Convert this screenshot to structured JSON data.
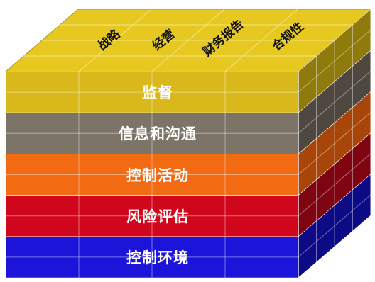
{
  "top_labels": [
    "战略",
    "经营",
    "财务报告",
    "合规性"
  ],
  "layers": [
    {
      "label": "监督",
      "front": "#d9b81c",
      "side": "#8f7a0c"
    },
    {
      "label": "信息和沟通",
      "front": "#7d7468",
      "side": "#4e4840"
    },
    {
      "label": "控制活动",
      "front": "#f26a12",
      "side": "#a8460a"
    },
    {
      "label": "风险评估",
      "front": "#d0071c",
      "side": "#7e0412"
    },
    {
      "label": "控制环境",
      "front": "#1c14d8",
      "side": "#0d0a85"
    }
  ],
  "top_color": "#e6c820",
  "grid_color": "#f3e27a"
}
